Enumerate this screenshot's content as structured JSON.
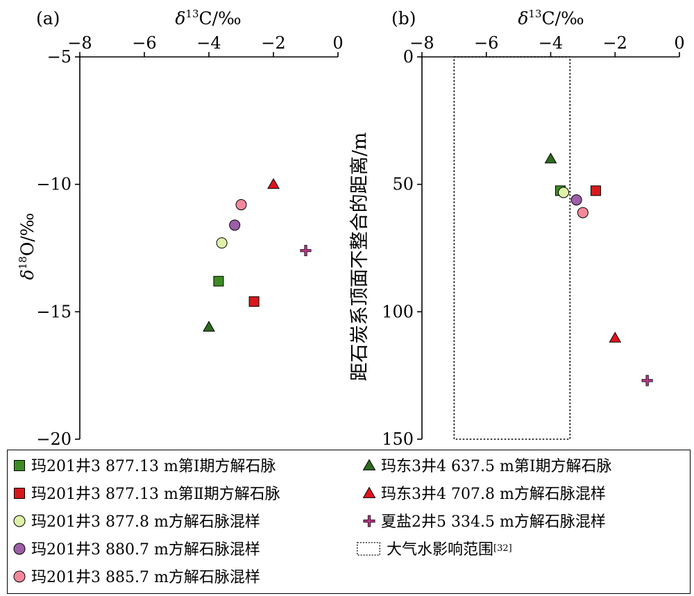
{
  "chart_data": [
    {
      "type": "scatter",
      "panel_label": "(a)",
      "xlabel": "δ13C/‰",
      "ylabel": "δ18O/‰",
      "x_axis_position": "top",
      "xlim": [
        -8,
        0
      ],
      "ylim": [
        -20,
        -5
      ],
      "y_inverted": false,
      "xticks": [
        "−8",
        "−6",
        "−4",
        "−2",
        "0"
      ],
      "yticks": [
        "−5",
        "−10",
        "−15",
        "−20"
      ],
      "series": [
        {
          "name": "玛201井3 877.13 m第Ⅰ期方解石脉",
          "marker": "square",
          "color": "#3d8b24",
          "points": [
            {
              "x": -3.7,
              "y": -13.8
            }
          ]
        },
        {
          "name": "玛201井3 877.13 m第Ⅱ期方解石脉",
          "marker": "square",
          "color": "#d7191c",
          "points": [
            {
              "x": -2.6,
              "y": -14.6
            }
          ]
        },
        {
          "name": "玛201井3 877.8 m方解石脉混样",
          "marker": "circle",
          "color": "#dff0a8",
          "points": [
            {
              "x": -3.6,
              "y": -12.3
            }
          ]
        },
        {
          "name": "玛201井3 880.7 m方解石脉混样",
          "marker": "circle",
          "color": "#9c5fa8",
          "points": [
            {
              "x": -3.2,
              "y": -11.6
            }
          ]
        },
        {
          "name": "玛201井3 885.7 m方解石脉混样",
          "marker": "circle",
          "color": "#f4899a",
          "points": [
            {
              "x": -3.0,
              "y": -10.8
            }
          ]
        },
        {
          "name": "玛东3井4 637.5 m第Ⅰ期方解石脉",
          "marker": "triangle",
          "color": "#2e6b1f",
          "points": [
            {
              "x": -4.0,
              "y": -15.6
            }
          ]
        },
        {
          "name": "玛东3井4 707.8 m方解石脉混样",
          "marker": "triangle",
          "color": "#e0141e",
          "points": [
            {
              "x": -2.0,
              "y": -10.0
            }
          ]
        },
        {
          "name": "夏盐2井5 334.5 m方解石脉混样",
          "marker": "plus",
          "color": "#c0388a",
          "points": [
            {
              "x": -1.0,
              "y": -12.6
            }
          ]
        }
      ]
    },
    {
      "type": "scatter",
      "panel_label": "(b)",
      "xlabel": "δ13C/‰",
      "ylabel": "距石炭系顶面不整合的距离/m",
      "x_axis_position": "top",
      "xlim": [
        -8,
        0
      ],
      "ylim": [
        0,
        150
      ],
      "y_inverted": true,
      "xticks": [
        "−8",
        "−6",
        "−4",
        "−2",
        "0"
      ],
      "yticks": [
        "0",
        "50",
        "100",
        "150"
      ],
      "series": [
        {
          "name": "玛201井3 877.13 m第Ⅰ期方解石脉",
          "marker": "square",
          "color": "#3d8b24",
          "points": [
            {
              "x": -3.7,
              "y": 52.5
            }
          ]
        },
        {
          "name": "玛201井3 877.13 m第Ⅱ期方解石脉",
          "marker": "square",
          "color": "#d7191c",
          "points": [
            {
              "x": -2.6,
              "y": 52.5
            }
          ]
        },
        {
          "name": "玛201井3 877.8 m方解石脉混样",
          "marker": "circle",
          "color": "#dff0a8",
          "points": [
            {
              "x": -3.6,
              "y": 53.2
            }
          ]
        },
        {
          "name": "玛201井3 880.7 m方解石脉混样",
          "marker": "circle",
          "color": "#9c5fa8",
          "points": [
            {
              "x": -3.2,
              "y": 56.1
            }
          ]
        },
        {
          "name": "玛201井3 885.7 m方解石脉混样",
          "marker": "circle",
          "color": "#f4899a",
          "points": [
            {
              "x": -3.0,
              "y": 61.1
            }
          ]
        },
        {
          "name": "玛东3井4 637.5 m第Ⅰ期方解石脉",
          "marker": "triangle",
          "color": "#2e6b1f",
          "points": [
            {
              "x": -4.0,
              "y": 40.0
            }
          ]
        },
        {
          "name": "玛东3井4 707.8 m方解石脉混样",
          "marker": "triangle",
          "color": "#e0141e",
          "points": [
            {
              "x": -2.0,
              "y": 110.3
            }
          ]
        },
        {
          "name": "夏盐2井5 334.5 m方解石脉混样",
          "marker": "plus",
          "color": "#c0388a",
          "points": [
            {
              "x": -1.0,
              "y": 127.0
            }
          ]
        }
      ],
      "region": {
        "name": "大气水影响范围",
        "ref": "[32]",
        "x": [
          -7.0,
          -3.4
        ],
        "y": [
          0,
          150
        ],
        "style": "dotted"
      }
    }
  ],
  "legend": {
    "items": [
      {
        "label": "玛201井3 877.13 m第Ⅰ期方解石脉",
        "marker": "square",
        "color": "#3d8b24"
      },
      {
        "label": "玛201井3 877.13 m第Ⅱ期方解石脉",
        "marker": "square",
        "color": "#d7191c"
      },
      {
        "label": "玛201井3 877.8 m方解石脉混样",
        "marker": "circle",
        "color": "#dff0a8"
      },
      {
        "label": "玛201井3 880.7 m方解石脉混样",
        "marker": "circle",
        "color": "#9c5fa8"
      },
      {
        "label": "玛201井3 885.7 m方解石脉混样",
        "marker": "circle",
        "color": "#f4899a"
      },
      {
        "label": "玛东3井4 637.5 m第Ⅰ期方解石脉",
        "marker": "triangle",
        "color": "#2e6b1f"
      },
      {
        "label": "玛东3井4 707.8 m方解石脉混样",
        "marker": "triangle",
        "color": "#e0141e"
      },
      {
        "label": "夏盐2井5 334.5 m方解石脉混样",
        "marker": "plus",
        "color": "#c0388a"
      },
      {
        "label": "大气水影响范围",
        "ref": "[32]",
        "marker": "dotted-rect",
        "color": "#000000"
      }
    ]
  }
}
